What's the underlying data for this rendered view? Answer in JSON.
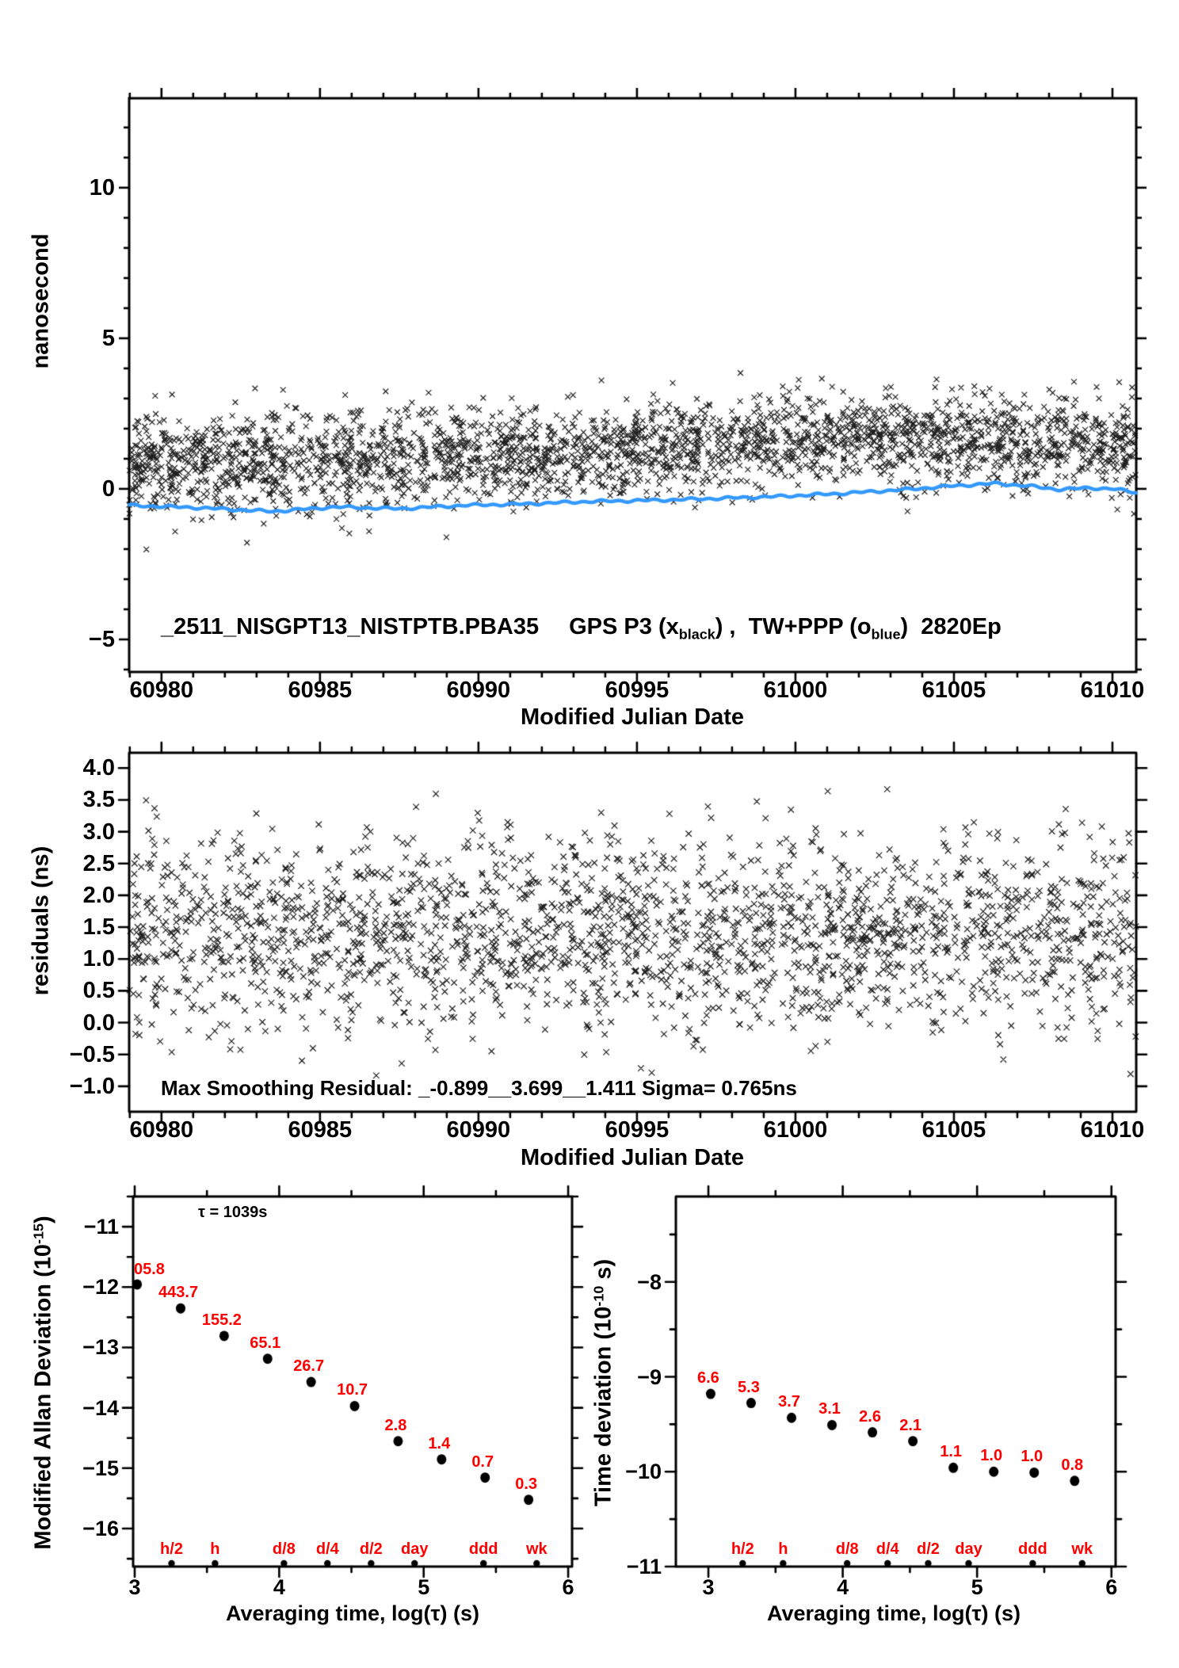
{
  "figure": {
    "background": "#ffffff",
    "black": "#000000",
    "blue_line_color": "#3399ff",
    "red_label_color": "#ff0000"
  },
  "chart_data": [
    {
      "id": "phase-plot",
      "type": "scatter",
      "title_parts": {
        "part1": "_2511_NISGPT13_NISTPTB.PBA35",
        "part2": "GPS P3 (x",
        "sub1": "black",
        "part3": ") ,  TW+PPP (o",
        "sub2": "blue",
        "part4": ")  2820Ep"
      },
      "xlabel": "Modified Julian Date",
      "ylabel": "nanosecond",
      "xlim": [
        60978.98,
        61010.75
      ],
      "ylim": [
        -6.08,
        12.97
      ],
      "xticks_major": [
        60980,
        60985,
        60990,
        60995,
        61000,
        61005,
        61010
      ],
      "xtick_labels": [
        "60980",
        "60985",
        "60990",
        "60995",
        "61000",
        "61005",
        "61010"
      ],
      "xtick_minor_step": 1,
      "yticks_major": [
        -5,
        0,
        5,
        10
      ],
      "ytick_labels": [
        "−5",
        "0",
        "5",
        "10"
      ],
      "ytick_minor_step": 1,
      "grid": false,
      "series": [
        {
          "name": "GPS P3 (x black)",
          "marker": "x",
          "color": "#000000",
          "generator": {
            "seed": 20231115,
            "count": 2700,
            "x_uniform": [
              60978.98,
              61010.75
            ],
            "y_mean_profile": [
              [
                60979,
                0.85
              ],
              [
                60984,
                0.9
              ],
              [
                60990,
                1.05
              ],
              [
                60994,
                1.2
              ],
              [
                60998,
                1.5
              ],
              [
                61001,
                1.65
              ],
              [
                61004,
                1.6
              ],
              [
                61007,
                1.5
              ],
              [
                61010.8,
                1.35
              ]
            ],
            "y_sigma": 0.82,
            "y_clip": [
              -2.8,
              3.95
            ]
          }
        },
        {
          "name": "TW+PPP (o blue)",
          "marker": "line",
          "color": "#3399ff",
          "points": [
            [
              60978.98,
              -0.55
            ],
            [
              60981,
              -0.62
            ],
            [
              60983.5,
              -0.75
            ],
            [
              60985.5,
              -0.6
            ],
            [
              60987.5,
              -0.66
            ],
            [
              60989.5,
              -0.55
            ],
            [
              60991.5,
              -0.5
            ],
            [
              60993.5,
              -0.42
            ],
            [
              60995.5,
              -0.38
            ],
            [
              60997.5,
              -0.32
            ],
            [
              60999.5,
              -0.25
            ],
            [
              61001.5,
              -0.15
            ],
            [
              61003.5,
              -0.02
            ],
            [
              61005,
              0.1
            ],
            [
              61006.3,
              0.18
            ],
            [
              61007.3,
              0.1
            ],
            [
              61008.3,
              -0.02
            ],
            [
              61009.3,
              0.03
            ],
            [
              61010,
              0.0
            ],
            [
              61010.75,
              -0.12
            ]
          ]
        }
      ]
    },
    {
      "id": "residuals-plot",
      "type": "scatter",
      "xlabel": "Modified Julian Date",
      "ylabel": "residuals (ns)",
      "note": "Max Smoothing Residual: _-0.899__3.699__1.411 Sigma= 0.765ns",
      "xlim": [
        60978.98,
        61010.75
      ],
      "ylim": [
        -1.4,
        4.24
      ],
      "xticks_major": [
        60980,
        60985,
        60990,
        60995,
        61000,
        61005,
        61010
      ],
      "xtick_labels": [
        "60980",
        "60985",
        "60990",
        "60995",
        "61000",
        "61005",
        "61010"
      ],
      "xtick_minor_step": 1,
      "yticks_major": [
        -1.0,
        -0.5,
        0.0,
        0.5,
        1.0,
        1.5,
        2.0,
        2.5,
        3.0,
        3.5,
        4.0
      ],
      "ytick_labels": [
        "−1.0",
        "−0.5",
        "0.0",
        "0.5",
        "1.0",
        "1.5",
        "2.0",
        "2.5",
        "3.0",
        "3.5",
        "4.0"
      ],
      "grid": false,
      "series": [
        {
          "name": "smoothing residuals",
          "marker": "x",
          "color": "#000000",
          "generator": {
            "seed": 98431,
            "count": 2200,
            "x_uniform": [
              60978.98,
              61010.75
            ],
            "y_mean_profile": [
              [
                60979,
                1.35
              ],
              [
                60995,
                1.42
              ],
              [
                61010.8,
                1.38
              ]
            ],
            "y_sigma": 0.77,
            "y_clip": [
              -0.9,
              3.7
            ]
          }
        }
      ]
    },
    {
      "id": "mdev-plot",
      "type": "scatter",
      "xlabel": "Averaging time, log(τ) (s)",
      "ylabel_parts": {
        "prefix": "Modified Allan Deviation (10",
        "sup": "-15",
        "suffix": ")"
      },
      "annotation": "τ = 1039s",
      "xlim": [
        2.989,
        6.027
      ],
      "ylim": [
        -16.63,
        -10.5
      ],
      "xticks_major": [
        3,
        4,
        5,
        6
      ],
      "xtick_labels": [
        "3",
        "4",
        "5",
        "6"
      ],
      "xtick_minor_step": 0.5,
      "yticks_major": [
        -11,
        -12,
        -13,
        -14,
        -15,
        -16
      ],
      "ytick_labels": [
        "−11",
        "−12",
        "−13",
        "−14",
        "−15",
        "−16"
      ],
      "ytick_minor_step": 0.5,
      "grid": false,
      "points": {
        "x": [
          3.017,
          3.318,
          3.619,
          3.92,
          4.221,
          4.522,
          4.823,
          5.124,
          5.425,
          5.726
        ],
        "y": [
          -11.956,
          -12.353,
          -12.809,
          -13.186,
          -13.573,
          -13.971,
          -14.553,
          -14.854,
          -15.155,
          -15.523
        ],
        "labels": [
          "05.8",
          "443.7",
          "155.2",
          "65.1",
          "26.7",
          "10.7",
          "2.8",
          "1.4",
          "0.7",
          "0.3"
        ]
      },
      "time_markers": {
        "labels": [
          "h/2",
          "h",
          "d/8",
          "d/4",
          "d/2",
          "day",
          "ddd",
          "wk"
        ],
        "x": [
          3.255,
          3.556,
          4.033,
          4.334,
          4.636,
          4.937,
          5.414,
          5.782
        ]
      }
    },
    {
      "id": "tdev-plot",
      "type": "scatter",
      "xlabel": "Averaging time, log(τ) (s)",
      "ylabel_parts": {
        "prefix": "Time deviation (10",
        "sup": "-10",
        "suffix": " s)"
      },
      "xlim": [
        2.758,
        6.031
      ],
      "ylim": [
        -11.0,
        -7.1
      ],
      "xticks_major": [
        3,
        4,
        5,
        6
      ],
      "xtick_labels": [
        "3",
        "4",
        "5",
        "6"
      ],
      "xtick_minor_step": 0.5,
      "yticks_major": [
        -8,
        -9,
        -10,
        -11
      ],
      "ytick_labels": [
        "−8",
        "−9",
        "−10",
        "−11"
      ],
      "ytick_minor_step": 0.5,
      "grid": false,
      "points": {
        "x": [
          3.017,
          3.318,
          3.619,
          3.92,
          4.221,
          4.522,
          4.823,
          5.124,
          5.425,
          5.726
        ],
        "y": [
          -9.18,
          -9.276,
          -9.432,
          -9.509,
          -9.585,
          -9.678,
          -9.959,
          -10.0,
          -10.01,
          -10.097
        ],
        "labels": [
          "6.6",
          "5.3",
          "3.7",
          "3.1",
          "2.6",
          "2.1",
          "1.1",
          "1.0",
          "1.0",
          "0.8"
        ]
      },
      "time_markers": {
        "labels": [
          "h/2",
          "h",
          "d/8",
          "d/4",
          "d/2",
          "day",
          "ddd",
          "wk"
        ],
        "x": [
          3.255,
          3.556,
          4.033,
          4.334,
          4.636,
          4.937,
          5.414,
          5.782
        ]
      }
    }
  ]
}
